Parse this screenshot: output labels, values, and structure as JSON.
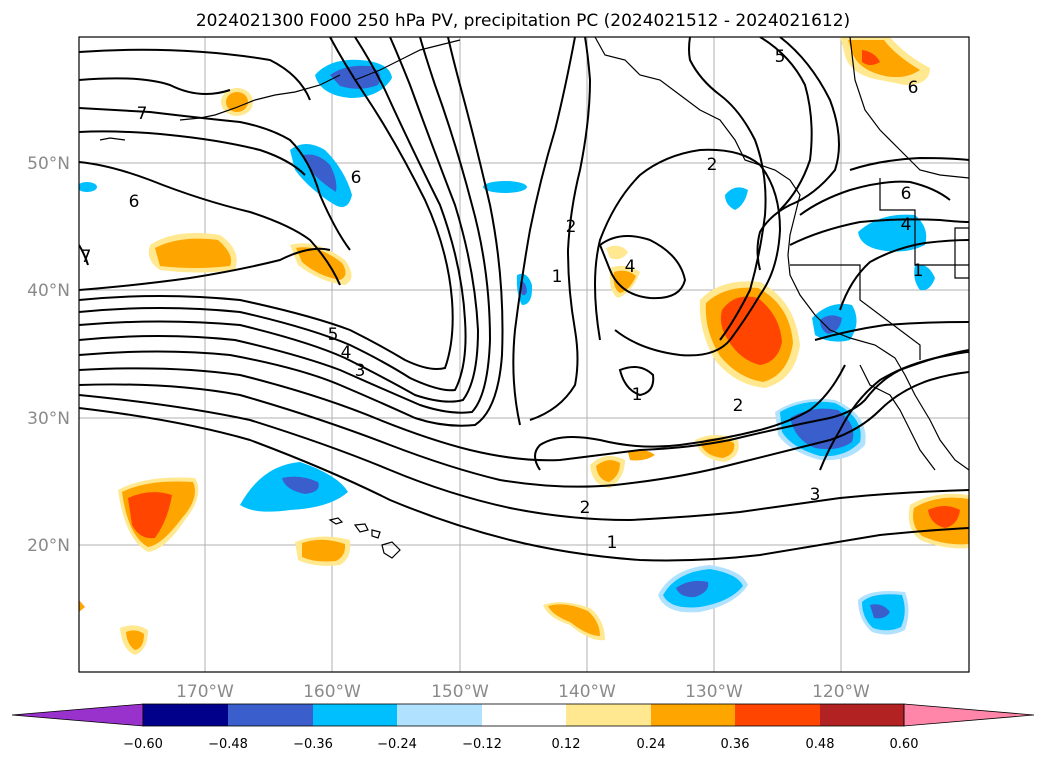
{
  "title": "2024021300 F000 250 hPa PV, precipitation PC (2024021512 - 2024021612)",
  "map": {
    "lon_labels": [
      "170°W",
      "160°W",
      "150°W",
      "140°W",
      "130°W",
      "120°W"
    ],
    "lat_labels": [
      "50°N",
      "40°N",
      "30°N",
      "20°N"
    ],
    "contour_labels": [
      {
        "text": "7",
        "name": "pv-label-7"
      },
      {
        "text": "6",
        "name": "pv-label-6-west"
      },
      {
        "text": "7",
        "name": "pv-label-7-edge"
      },
      {
        "text": "6",
        "name": "pv-label-6-central"
      },
      {
        "text": "5",
        "name": "pv-label-5-west"
      },
      {
        "text": "4",
        "name": "pv-label-4-west"
      },
      {
        "text": "3",
        "name": "pv-label-3-west"
      },
      {
        "text": "2",
        "name": "pv-label-2-mid"
      },
      {
        "text": "1",
        "name": "pv-label-1-mid"
      },
      {
        "text": "2",
        "name": "pv-label-2-north"
      },
      {
        "text": "5",
        "name": "pv-label-5-north"
      },
      {
        "text": "6",
        "name": "pv-label-6-ne"
      },
      {
        "text": "6",
        "name": "pv-label-6-coast"
      },
      {
        "text": "4",
        "name": "pv-label-4-coast"
      },
      {
        "text": "1",
        "name": "pv-label-1-coast"
      },
      {
        "text": "4",
        "name": "pv-label-4-center"
      },
      {
        "text": "1",
        "name": "pv-label-1-center"
      },
      {
        "text": "2",
        "name": "pv-label-2-south"
      },
      {
        "text": "3",
        "name": "pv-label-3-south"
      },
      {
        "text": "2",
        "name": "pv-label-2-sw"
      },
      {
        "text": "1",
        "name": "pv-label-1-sw"
      }
    ]
  },
  "colorbar": {
    "ticks": [
      "−0.60",
      "−0.48",
      "−0.36",
      "−0.24",
      "−0.12",
      "0.12",
      "0.24",
      "0.36",
      "0.48",
      "0.60"
    ],
    "colors": [
      "#9932cc",
      "#00008b",
      "#3a5fcd",
      "#00bfff",
      "#b0e2ff",
      "#ffffff",
      "#ffe88f",
      "#ffa500",
      "#ff4500",
      "#b22222",
      "#ff86a8"
    ]
  },
  "legend_colors": {
    "light_blue": "#00bfff",
    "mid_blue": "#3a5fcd",
    "yellow": "#ffe88f",
    "orange": "#ffa500",
    "red_orange": "#ff4500"
  }
}
